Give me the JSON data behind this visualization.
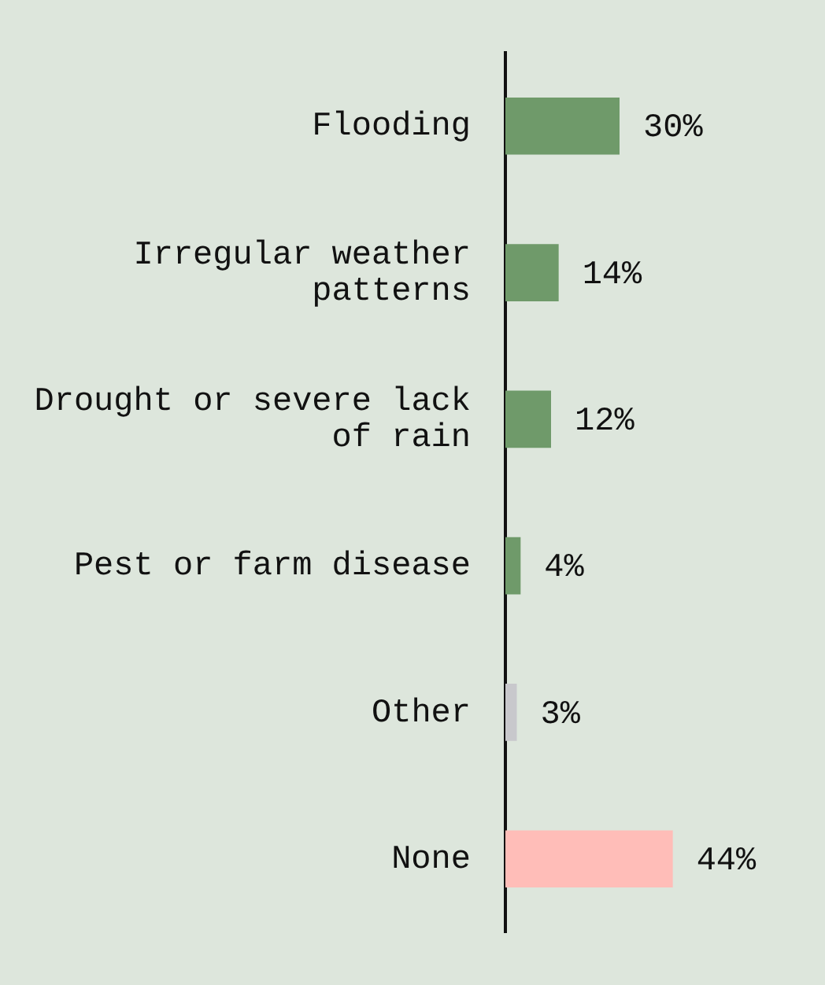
{
  "chart_data": {
    "type": "bar",
    "orientation": "horizontal",
    "categories": [
      "Flooding",
      "Irregular weather patterns",
      "Drought or severe lack of rain",
      "Pest or farm disease",
      "Other",
      "None"
    ],
    "values": [
      30,
      14,
      12,
      4,
      3,
      44
    ],
    "colors": [
      "#6f9a6a",
      "#6f9a6a",
      "#6f9a6a",
      "#6f9a6a",
      "#c8c8cc",
      "#ffbdb8"
    ],
    "value_labels": [
      "30%",
      "14%",
      "12%",
      "4%",
      "3%",
      "44%"
    ],
    "tick_labels": "y",
    "grid": false,
    "legend": false
  }
}
